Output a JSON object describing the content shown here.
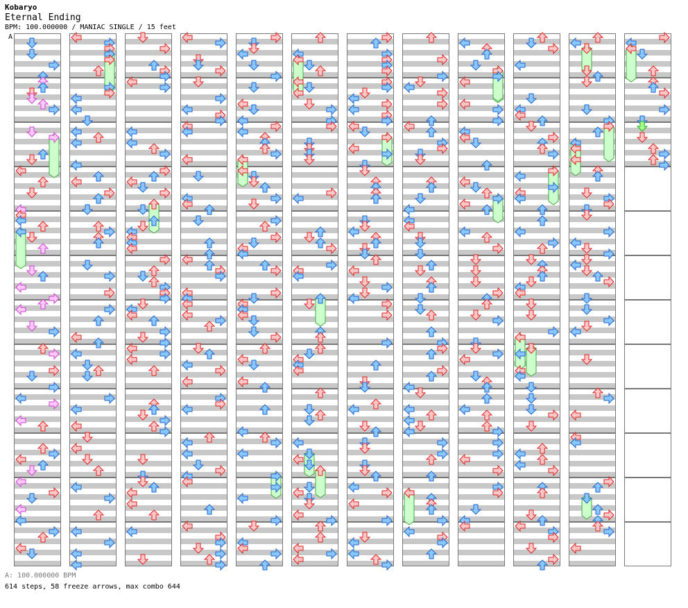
{
  "header": {
    "artist": "Kobaryo",
    "title": "Eternal Ending",
    "info": "BPM: 100.000000 / MANIAC SINGLE / 15 feet",
    "bpm_marker": "A"
  },
  "footer": {
    "bpm_line": "A: 100.000000 BPM",
    "stats": "614 steps, 58 freeze arrows, max combo 644"
  },
  "colors": {
    "red_fill": "#ffc8c8",
    "red_stroke": "#dd2222",
    "blue_fill": "#88c8ff",
    "blue_stroke": "#2266cc",
    "pink_fill": "#ffc8ff",
    "pink_stroke": "#cc44cc",
    "green_fill": "#aaff88",
    "green_stroke": "#22aa22",
    "freeze_fill": "#ccffcc",
    "freeze_stroke": "#44aa44",
    "stripe": "#c8c8c8"
  },
  "chart_data": {
    "type": "step-chart",
    "measures_per_column": 12,
    "total_measures": 135,
    "lanes": [
      "left",
      "down",
      "up",
      "right"
    ],
    "summary": {
      "steps": 614,
      "freeze_arrows": 58,
      "max_combo": 644
    }
  }
}
